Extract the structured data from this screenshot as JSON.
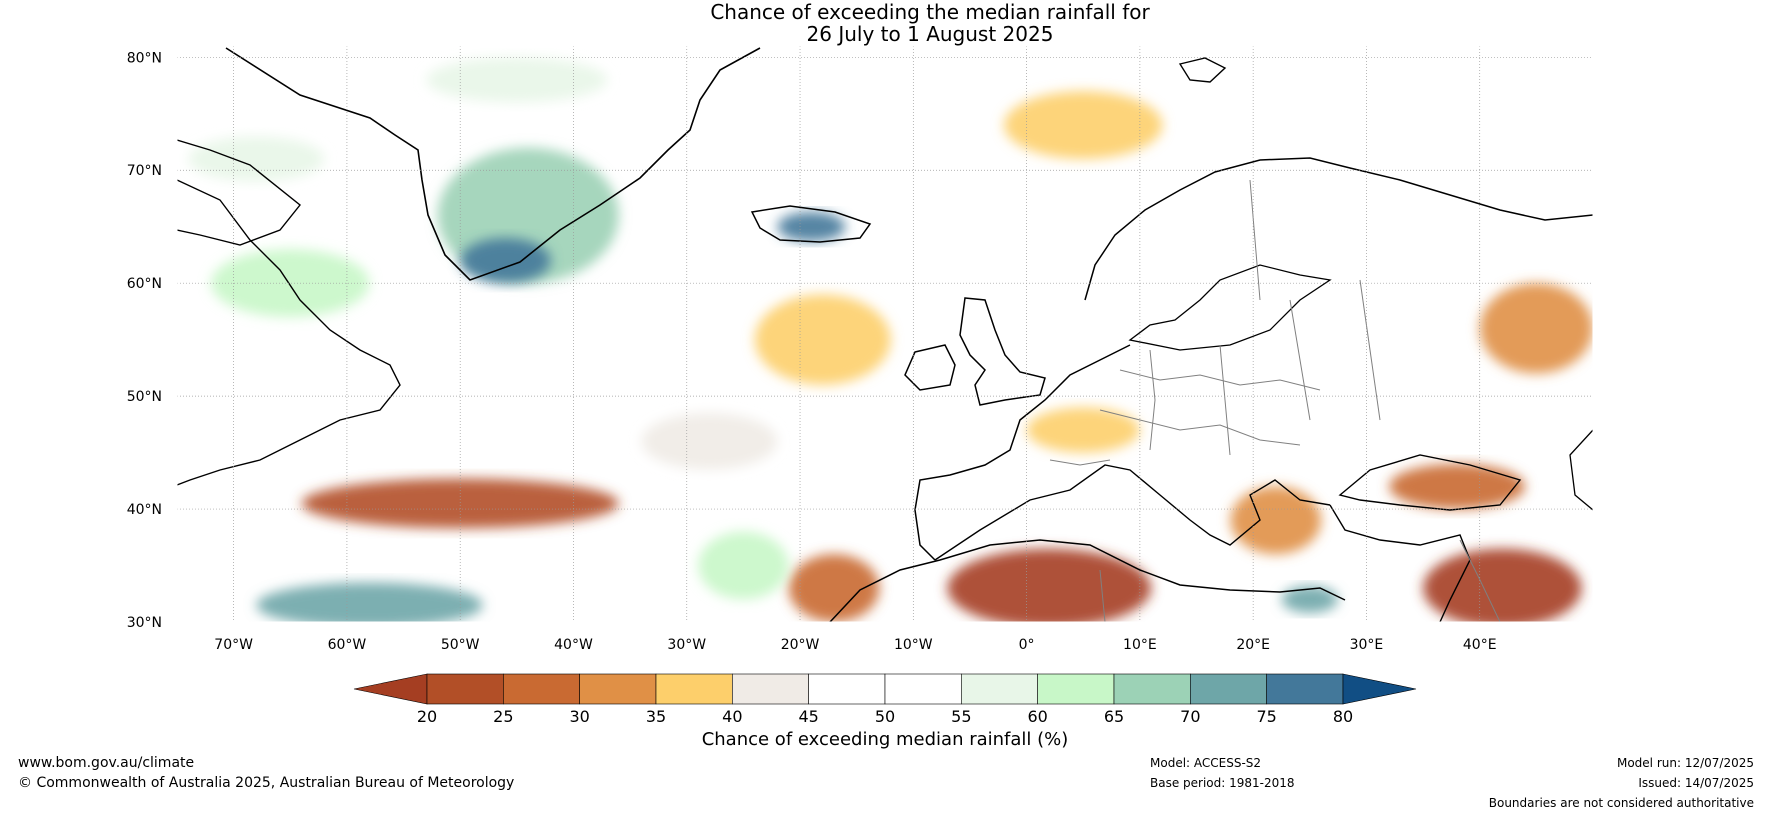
{
  "title": {
    "line1": "Chance of exceeding the median rainfall for",
    "line2": "26 July to 1 August 2025"
  },
  "map": {
    "extent": {
      "lon_min": -75,
      "lon_max": 50,
      "lat_min": 30,
      "lat_max": 81
    },
    "lat_ticks": [
      {
        "value": 80,
        "label": "80°N"
      },
      {
        "value": 70,
        "label": "70°N"
      },
      {
        "value": 60,
        "label": "60°N"
      },
      {
        "value": 50,
        "label": "50°N"
      },
      {
        "value": 40,
        "label": "40°N"
      },
      {
        "value": 30,
        "label": "30°N"
      }
    ],
    "lon_ticks": [
      {
        "value": -70,
        "label": "70°W"
      },
      {
        "value": -60,
        "label": "60°W"
      },
      {
        "value": -50,
        "label": "50°W"
      },
      {
        "value": -40,
        "label": "40°W"
      },
      {
        "value": -30,
        "label": "30°W"
      },
      {
        "value": -20,
        "label": "20°W"
      },
      {
        "value": -10,
        "label": "10°W"
      },
      {
        "value": 0,
        "label": "0°"
      },
      {
        "value": 10,
        "label": "10°E"
      },
      {
        "value": 20,
        "label": "20°E"
      },
      {
        "value": 30,
        "label": "30°E"
      },
      {
        "value": 40,
        "label": "40°E"
      }
    ],
    "regions": [
      {
        "name": "dry-sahara",
        "lon": 2,
        "lat": 33,
        "rx_deg": 9,
        "ry_deg": 3.5,
        "class": 0
      },
      {
        "name": "dry-arabia",
        "lon": 42,
        "lat": 33,
        "rx_deg": 7,
        "ry_deg": 3.5,
        "class": 0
      },
      {
        "name": "dry-atlantic-band",
        "lon": -50,
        "lat": 40.5,
        "rx_deg": 14,
        "ry_deg": 2.2,
        "class": 1
      },
      {
        "name": "dry-iberia-west",
        "lon": -17,
        "lat": 33,
        "rx_deg": 4,
        "ry_deg": 3,
        "class": 2
      },
      {
        "name": "dry-black-sea",
        "lon": 38,
        "lat": 42,
        "rx_deg": 6,
        "ry_deg": 2,
        "class": 2
      },
      {
        "name": "dry-balkans",
        "lon": 22,
        "lat": 39,
        "rx_deg": 4,
        "ry_deg": 3,
        "class": 3
      },
      {
        "name": "dry-russia",
        "lon": 45,
        "lat": 56,
        "rx_deg": 5,
        "ry_deg": 4,
        "class": 3
      },
      {
        "name": "dry-iceland-south",
        "lon": -18,
        "lat": 55,
        "rx_deg": 6,
        "ry_deg": 4,
        "class": 4
      },
      {
        "name": "dry-france",
        "lon": 5,
        "lat": 47,
        "rx_deg": 5,
        "ry_deg": 2,
        "class": 4
      },
      {
        "name": "dry-norwegian-sea",
        "lon": 5,
        "lat": 74,
        "rx_deg": 7,
        "ry_deg": 3,
        "class": 4
      },
      {
        "name": "dry-atlantic-mid",
        "lon": -28,
        "lat": 46,
        "rx_deg": 6,
        "ry_deg": 2.5,
        "class": 5
      },
      {
        "name": "wet-greenland",
        "lon": -44,
        "lat": 66,
        "rx_deg": 8,
        "ry_deg": 6,
        "class": 10
      },
      {
        "name": "wet-greenland-core",
        "lon": -46,
        "lat": 62,
        "rx_deg": 4,
        "ry_deg": 2,
        "class": 12
      },
      {
        "name": "wet-iceland",
        "lon": -19,
        "lat": 65,
        "rx_deg": 3,
        "ry_deg": 1.3,
        "class": 12
      },
      {
        "name": "wet-labrador",
        "lon": -65,
        "lat": 60,
        "rx_deg": 7,
        "ry_deg": 3,
        "class": 9
      },
      {
        "name": "wet-atlantic-south",
        "lon": -58,
        "lat": 31.5,
        "rx_deg": 10,
        "ry_deg": 2,
        "class": 11
      },
      {
        "name": "wet-azores",
        "lon": -25,
        "lat": 35,
        "rx_deg": 4,
        "ry_deg": 3,
        "class": 9
      },
      {
        "name": "wet-med-east",
        "lon": 25,
        "lat": 32,
        "rx_deg": 2.5,
        "ry_deg": 1.2,
        "class": 11
      },
      {
        "name": "wet-baffin",
        "lon": -68,
        "lat": 71,
        "rx_deg": 6,
        "ry_deg": 2,
        "class": 8
      },
      {
        "name": "neutral-arctic",
        "lon": -45,
        "lat": 78,
        "rx_deg": 8,
        "ry_deg": 2,
        "class": 8
      }
    ]
  },
  "colorbar": {
    "ticks": [
      "20",
      "25",
      "30",
      "35",
      "40",
      "45",
      "50",
      "55",
      "60",
      "65",
      "70",
      "75",
      "80"
    ],
    "colors": [
      "#a53e22",
      "#b24f27",
      "#c96a32",
      "#e09046",
      "#fdcf6b",
      "#f0ebe6",
      "#ffffff",
      "#ffffff",
      "#e8f6e8",
      "#c8f7c8",
      "#9cd2b6",
      "#6ea6a8",
      "#43789a",
      "#114e84"
    ],
    "label": "Chance of exceeding median rainfall (%)"
  },
  "footer": {
    "website": "www.bom.gov.au/climate",
    "copyright": "© Commonwealth of Australia 2025, Australian Bureau of Meteorology",
    "model": "Model: ACCESS-S2",
    "base_period": "Base period: 1981-2018",
    "model_run": "Model run: 12/07/2025",
    "issued": "Issued: 14/07/2025",
    "disclaimer": "Boundaries are not considered authoritative"
  }
}
